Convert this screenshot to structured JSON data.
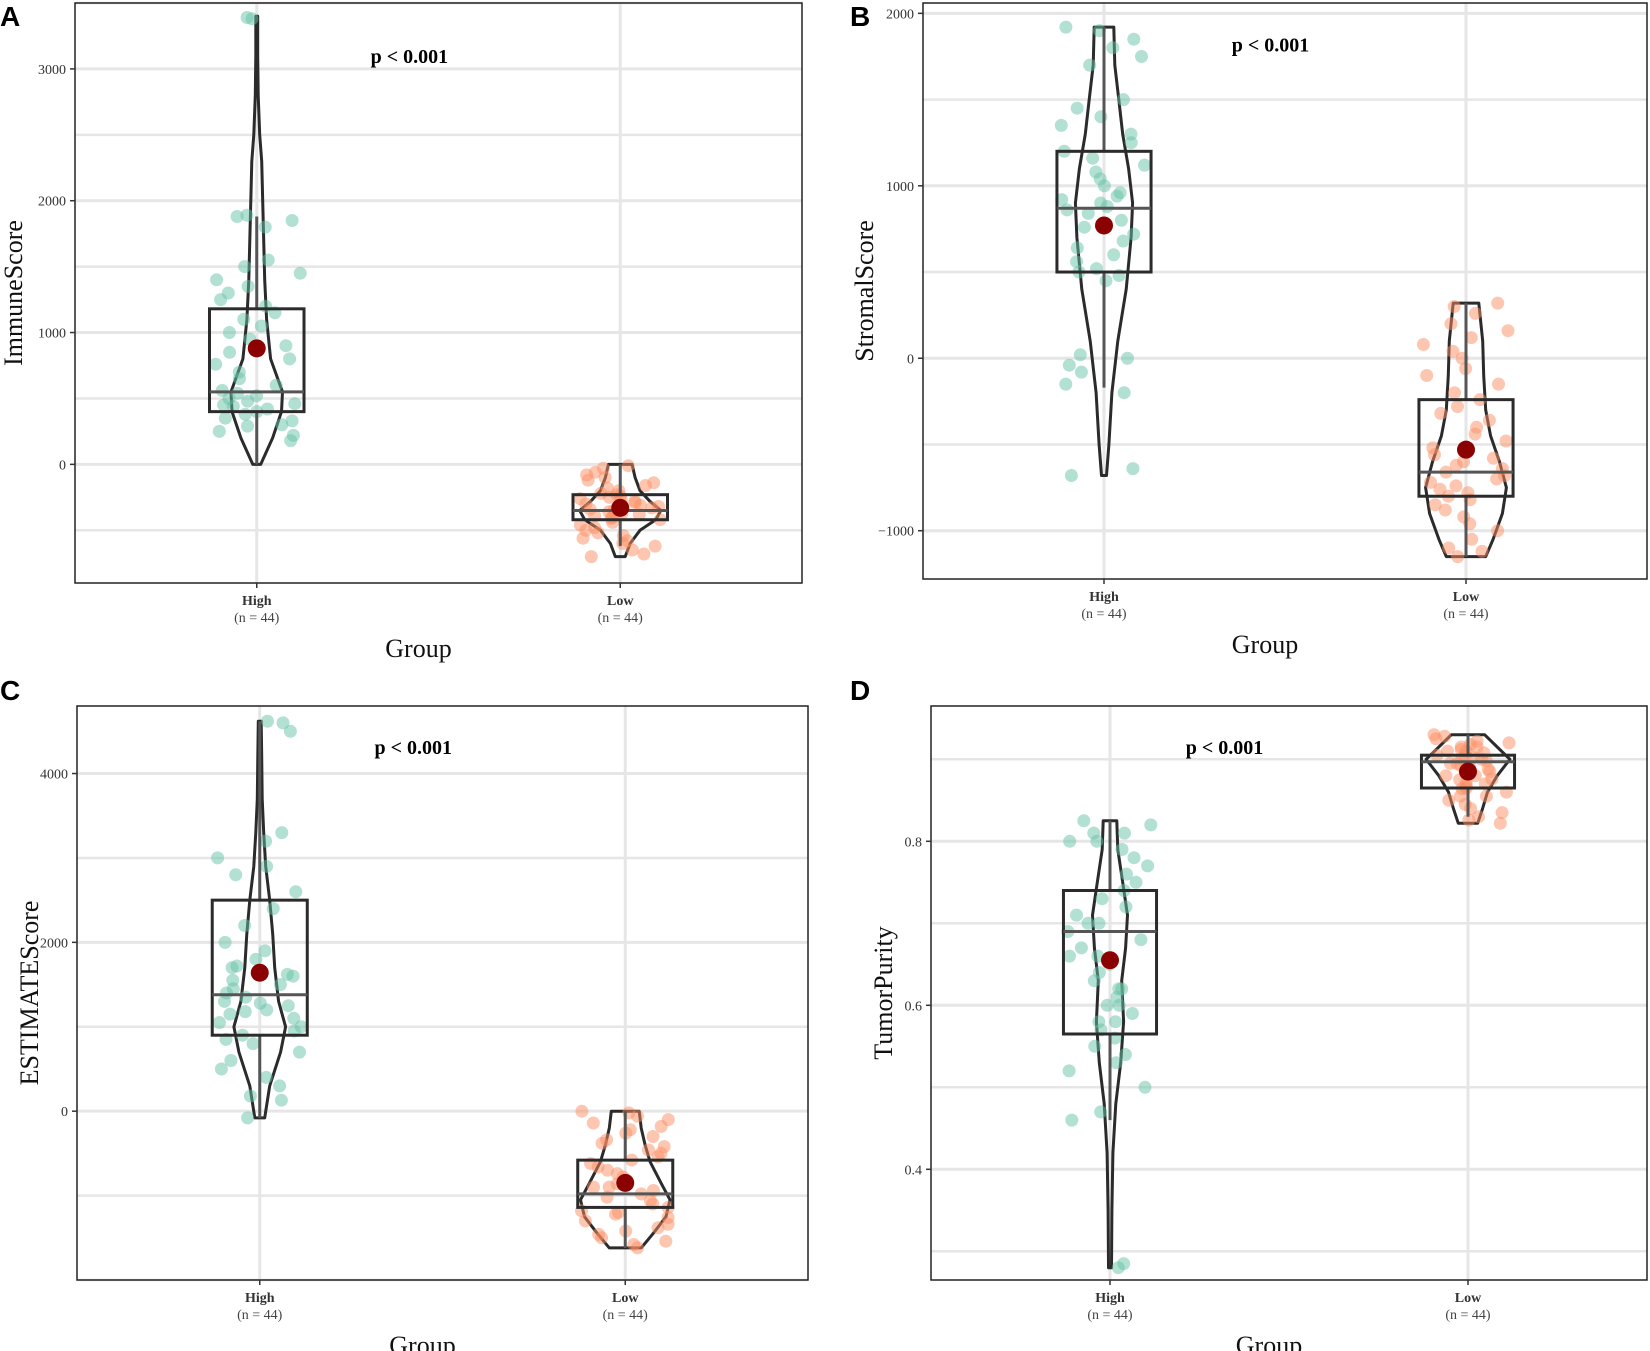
{
  "colors": {
    "high": "#66c2a5",
    "low": "#fc8d62",
    "mean": "#8b0000",
    "outline": "#2b2b2b",
    "grid": "#e6e6e6"
  },
  "panels": [
    {
      "letter": "A",
      "pvalue": "p < 0.001"
    },
    {
      "letter": "B",
      "pvalue": "p < 0.001"
    },
    {
      "letter": "C",
      "pvalue": "p < 0.001"
    },
    {
      "letter": "D",
      "pvalue": "p < 0.001"
    }
  ],
  "chart_data": [
    {
      "type": "violin+box+jitter",
      "title": "",
      "xlabel": "Group",
      "ylabel": "ImmuneScore",
      "ylim": [
        -900,
        3500
      ],
      "yticks": [
        0,
        1000,
        2000,
        3000
      ],
      "ytick_labels": [
        "0",
        "1000",
        "2000",
        "3000"
      ],
      "categories": [
        "High",
        "Low"
      ],
      "n_labels": [
        "(n = 44)",
        "(n = 44)"
      ],
      "annotation": "p < 0.001",
      "series": [
        {
          "name": "High",
          "box": {
            "q1": 400,
            "median": 550,
            "q3": 1180,
            "whisker_low": 0,
            "whisker_high": 1880
          },
          "mean": 880,
          "min": 0,
          "max": 3400,
          "violin": [
            [
              0,
              0.08
            ],
            [
              200,
              0.32
            ],
            [
              400,
              0.5
            ],
            [
              550,
              0.52
            ],
            [
              800,
              0.28
            ],
            [
              1100,
              0.2
            ],
            [
              1400,
              0.16
            ],
            [
              1700,
              0.14
            ],
            [
              2000,
              0.12
            ],
            [
              2300,
              0.1
            ],
            [
              2500,
              0.06
            ],
            [
              2800,
              0.03
            ],
            [
              3100,
              0.02
            ],
            [
              3400,
              0.02
            ]
          ],
          "points": [
            180,
            220,
            250,
            290,
            330,
            350,
            380,
            400,
            420,
            440,
            450,
            460,
            480,
            500,
            520,
            540,
            560,
            600,
            650,
            700,
            760,
            800,
            850,
            900,
            950,
            1000,
            1050,
            1100,
            1150,
            1200,
            1250,
            1300,
            1350,
            1400,
            1450,
            1500,
            1550,
            1800,
            1850,
            1880,
            1890,
            3380,
            3390,
            300
          ]
        },
        {
          "name": "Low",
          "box": {
            "q1": -420,
            "median": -350,
            "q3": -230,
            "whisker_low": -620,
            "whisker_high": 0
          },
          "mean": -330,
          "min": -700,
          "max": 0,
          "violin": [
            [
              -700,
              0.1
            ],
            [
              -600,
              0.2
            ],
            [
              -500,
              0.4
            ],
            [
              -420,
              0.72
            ],
            [
              -350,
              0.82
            ],
            [
              -280,
              0.6
            ],
            [
              -200,
              0.4
            ],
            [
              -100,
              0.3
            ],
            [
              0,
              0.24
            ]
          ],
          "points": [
            -700,
            -680,
            -650,
            -620,
            -600,
            -580,
            -560,
            -540,
            -520,
            -500,
            -480,
            -460,
            -440,
            -420,
            -410,
            -400,
            -390,
            -380,
            -370,
            -360,
            -350,
            -340,
            -330,
            -320,
            -310,
            -300,
            -290,
            -280,
            -270,
            -260,
            -250,
            -240,
            -230,
            -220,
            -200,
            -180,
            -160,
            -140,
            -120,
            -100,
            -80,
            -60,
            -30,
            -10
          ]
        }
      ]
    },
    {
      "type": "violin+box+jitter",
      "title": "",
      "xlabel": "Group",
      "ylabel": "StromalScore",
      "ylim": [
        -1280,
        2060
      ],
      "yticks": [
        -1000,
        0,
        1000,
        2000
      ],
      "ytick_labels": [
        "−1000",
        "0",
        "1000",
        "2000"
      ],
      "categories": [
        "High",
        "Low"
      ],
      "n_labels": [
        "(n = 44)",
        "(n = 44)"
      ],
      "annotation": "p < 0.001",
      "series": [
        {
          "name": "High",
          "box": {
            "q1": 500,
            "median": 870,
            "q3": 1200,
            "whisker_low": -170,
            "whisker_high": 1920
          },
          "mean": 770,
          "min": -680,
          "max": 1920,
          "violin": [
            [
              -680,
              0.05
            ],
            [
              -500,
              0.1
            ],
            [
              -200,
              0.16
            ],
            [
              100,
              0.28
            ],
            [
              400,
              0.45
            ],
            [
              700,
              0.55
            ],
            [
              900,
              0.58
            ],
            [
              1100,
              0.5
            ],
            [
              1300,
              0.38
            ],
            [
              1500,
              0.3
            ],
            [
              1700,
              0.22
            ],
            [
              1920,
              0.2
            ]
          ],
          "points": [
            -680,
            -640,
            -200,
            -150,
            -80,
            -40,
            0,
            20,
            450,
            480,
            500,
            520,
            560,
            600,
            640,
            680,
            720,
            760,
            800,
            840,
            860,
            880,
            900,
            920,
            940,
            960,
            1000,
            1040,
            1080,
            1120,
            1160,
            1200,
            1250,
            1300,
            1350,
            1400,
            1450,
            1500,
            1700,
            1750,
            1800,
            1850,
            1900,
            1920
          ]
        },
        {
          "name": "Low",
          "box": {
            "q1": -800,
            "median": -660,
            "q3": -240,
            "whisker_low": -1150,
            "whisker_high": 320
          },
          "mean": -530,
          "min": -1150,
          "max": 320,
          "violin": [
            [
              -1150,
              0.4
            ],
            [
              -1050,
              0.55
            ],
            [
              -900,
              0.74
            ],
            [
              -750,
              0.82
            ],
            [
              -600,
              0.68
            ],
            [
              -450,
              0.5
            ],
            [
              -300,
              0.4
            ],
            [
              -100,
              0.36
            ],
            [
              100,
              0.34
            ],
            [
              320,
              0.26
            ]
          ],
          "points": [
            -1150,
            -1120,
            -1100,
            -1050,
            -1000,
            -960,
            -920,
            -880,
            -850,
            -820,
            -800,
            -780,
            -760,
            -740,
            -720,
            -700,
            -680,
            -660,
            -640,
            -620,
            -600,
            -580,
            -560,
            -520,
            -480,
            -440,
            -400,
            -360,
            -320,
            -280,
            -240,
            -200,
            -150,
            -100,
            -60,
            0,
            40,
            80,
            120,
            160,
            200,
            260,
            300,
            320
          ]
        }
      ]
    },
    {
      "type": "violin+box+jitter",
      "title": "",
      "xlabel": "Group",
      "ylabel": "ESTIMATEScore",
      "ylim": [
        -2000,
        4800
      ],
      "yticks": [
        0,
        2000,
        4000
      ],
      "ytick_labels": [
        "0",
        "2000",
        "4000"
      ],
      "categories": [
        "High",
        "Low"
      ],
      "n_labels": [
        "(n = 44)",
        "(n = 44)"
      ],
      "annotation": "p < 0.001",
      "series": [
        {
          "name": "High",
          "box": {
            "q1": 900,
            "median": 1380,
            "q3": 2500,
            "whisker_low": -80,
            "whisker_high": 4620
          },
          "mean": 1640,
          "min": -80,
          "max": 4620,
          "violin": [
            [
              -80,
              0.1
            ],
            [
              300,
              0.2
            ],
            [
              700,
              0.42
            ],
            [
              1000,
              0.52
            ],
            [
              1300,
              0.38
            ],
            [
              1700,
              0.3
            ],
            [
              2100,
              0.26
            ],
            [
              2500,
              0.2
            ],
            [
              2900,
              0.12
            ],
            [
              3300,
              0.08
            ],
            [
              3700,
              0.05
            ],
            [
              4200,
              0.04
            ],
            [
              4620,
              0.03
            ]
          ],
          "points": [
            -80,
            130,
            180,
            300,
            400,
            500,
            600,
            700,
            800,
            850,
            900,
            950,
            1000,
            1050,
            1100,
            1150,
            1200,
            1250,
            1300,
            1350,
            1400,
            1450,
            1500,
            1550,
            1600,
            1700,
            1800,
            1900,
            2000,
            2200,
            2400,
            2600,
            2800,
            2900,
            3000,
            3200,
            3300,
            4500,
            4600,
            4620,
            1620,
            1720,
            1280,
            1180
          ]
        },
        {
          "name": "Low",
          "box": {
            "q1": -1140,
            "median": -980,
            "q3": -580,
            "whisker_low": -1620,
            "whisker_high": 0
          },
          "mean": -850,
          "min": -1620,
          "max": 0,
          "violin": [
            [
              -1620,
              0.32
            ],
            [
              -1450,
              0.56
            ],
            [
              -1250,
              0.82
            ],
            [
              -1050,
              0.9
            ],
            [
              -850,
              0.72
            ],
            [
              -600,
              0.5
            ],
            [
              -400,
              0.4
            ],
            [
              -200,
              0.32
            ],
            [
              0,
              0.28
            ]
          ],
          "points": [
            -1620,
            -1580,
            -1540,
            -1500,
            -1460,
            -1420,
            -1380,
            -1340,
            -1300,
            -1260,
            -1220,
            -1180,
            -1140,
            -1100,
            -1060,
            -1020,
            -980,
            -940,
            -900,
            -860,
            -820,
            -780,
            -740,
            -700,
            -660,
            -620,
            -580,
            -540,
            -500,
            -460,
            -420,
            -380,
            -340,
            -300,
            -260,
            -220,
            -180,
            -140,
            -100,
            -60,
            -20,
            0,
            -1200,
            -900
          ]
        }
      ]
    },
    {
      "type": "violin+box+jitter",
      "title": "",
      "xlabel": "Group",
      "ylabel": "TumorPurity",
      "ylim": [
        0.265,
        0.965
      ],
      "yticks": [
        0.4,
        0.6,
        0.8
      ],
      "ytick_labels": [
        "0.4",
        "0.6",
        "0.8"
      ],
      "categories": [
        "High",
        "Low"
      ],
      "n_labels": [
        "(n = 44)",
        "(n = 44)"
      ],
      "annotation": "p < 0.001",
      "series": [
        {
          "name": "High",
          "box": {
            "q1": 0.565,
            "median": 0.69,
            "q3": 0.74,
            "whisker_low": 0.46,
            "whisker_high": 0.825
          },
          "mean": 0.655,
          "min": 0.28,
          "max": 0.825,
          "violin": [
            [
              0.28,
              0.03
            ],
            [
              0.35,
              0.04
            ],
            [
              0.42,
              0.06
            ],
            [
              0.48,
              0.12
            ],
            [
              0.53,
              0.22
            ],
            [
              0.58,
              0.28
            ],
            [
              0.63,
              0.24
            ],
            [
              0.67,
              0.32
            ],
            [
              0.71,
              0.36
            ],
            [
              0.75,
              0.26
            ],
            [
              0.79,
              0.16
            ],
            [
              0.825,
              0.14
            ]
          ],
          "points": [
            0.28,
            0.285,
            0.46,
            0.47,
            0.5,
            0.52,
            0.53,
            0.54,
            0.55,
            0.56,
            0.57,
            0.58,
            0.59,
            0.6,
            0.61,
            0.62,
            0.63,
            0.64,
            0.65,
            0.66,
            0.67,
            0.68,
            0.69,
            0.7,
            0.71,
            0.72,
            0.73,
            0.74,
            0.75,
            0.76,
            0.77,
            0.78,
            0.79,
            0.8,
            0.8,
            0.81,
            0.81,
            0.82,
            0.825,
            0.7,
            0.66,
            0.62,
            0.58,
            0.6
          ]
        },
        {
          "name": "Low",
          "box": {
            "q1": 0.865,
            "median": 0.897,
            "q3": 0.905,
            "whisker_low": 0.83,
            "whisker_high": 0.93
          },
          "mean": 0.885,
          "min": 0.822,
          "max": 0.93,
          "violin": [
            [
              0.822,
              0.2
            ],
            [
              0.84,
              0.3
            ],
            [
              0.86,
              0.4
            ],
            [
              0.88,
              0.6
            ],
            [
              0.9,
              0.86
            ],
            [
              0.915,
              0.6
            ],
            [
              0.93,
              0.34
            ]
          ],
          "points": [
            0.822,
            0.826,
            0.83,
            0.835,
            0.84,
            0.845,
            0.85,
            0.855,
            0.86,
            0.864,
            0.868,
            0.872,
            0.876,
            0.88,
            0.884,
            0.888,
            0.892,
            0.895,
            0.898,
            0.9,
            0.902,
            0.905,
            0.908,
            0.91,
            0.912,
            0.915,
            0.918,
            0.92,
            0.922,
            0.925,
            0.928,
            0.93,
            0.87,
            0.88,
            0.89,
            0.9,
            0.905,
            0.91,
            0.915,
            0.895,
            0.885,
            0.875,
            0.865,
            0.855
          ]
        }
      ]
    }
  ]
}
